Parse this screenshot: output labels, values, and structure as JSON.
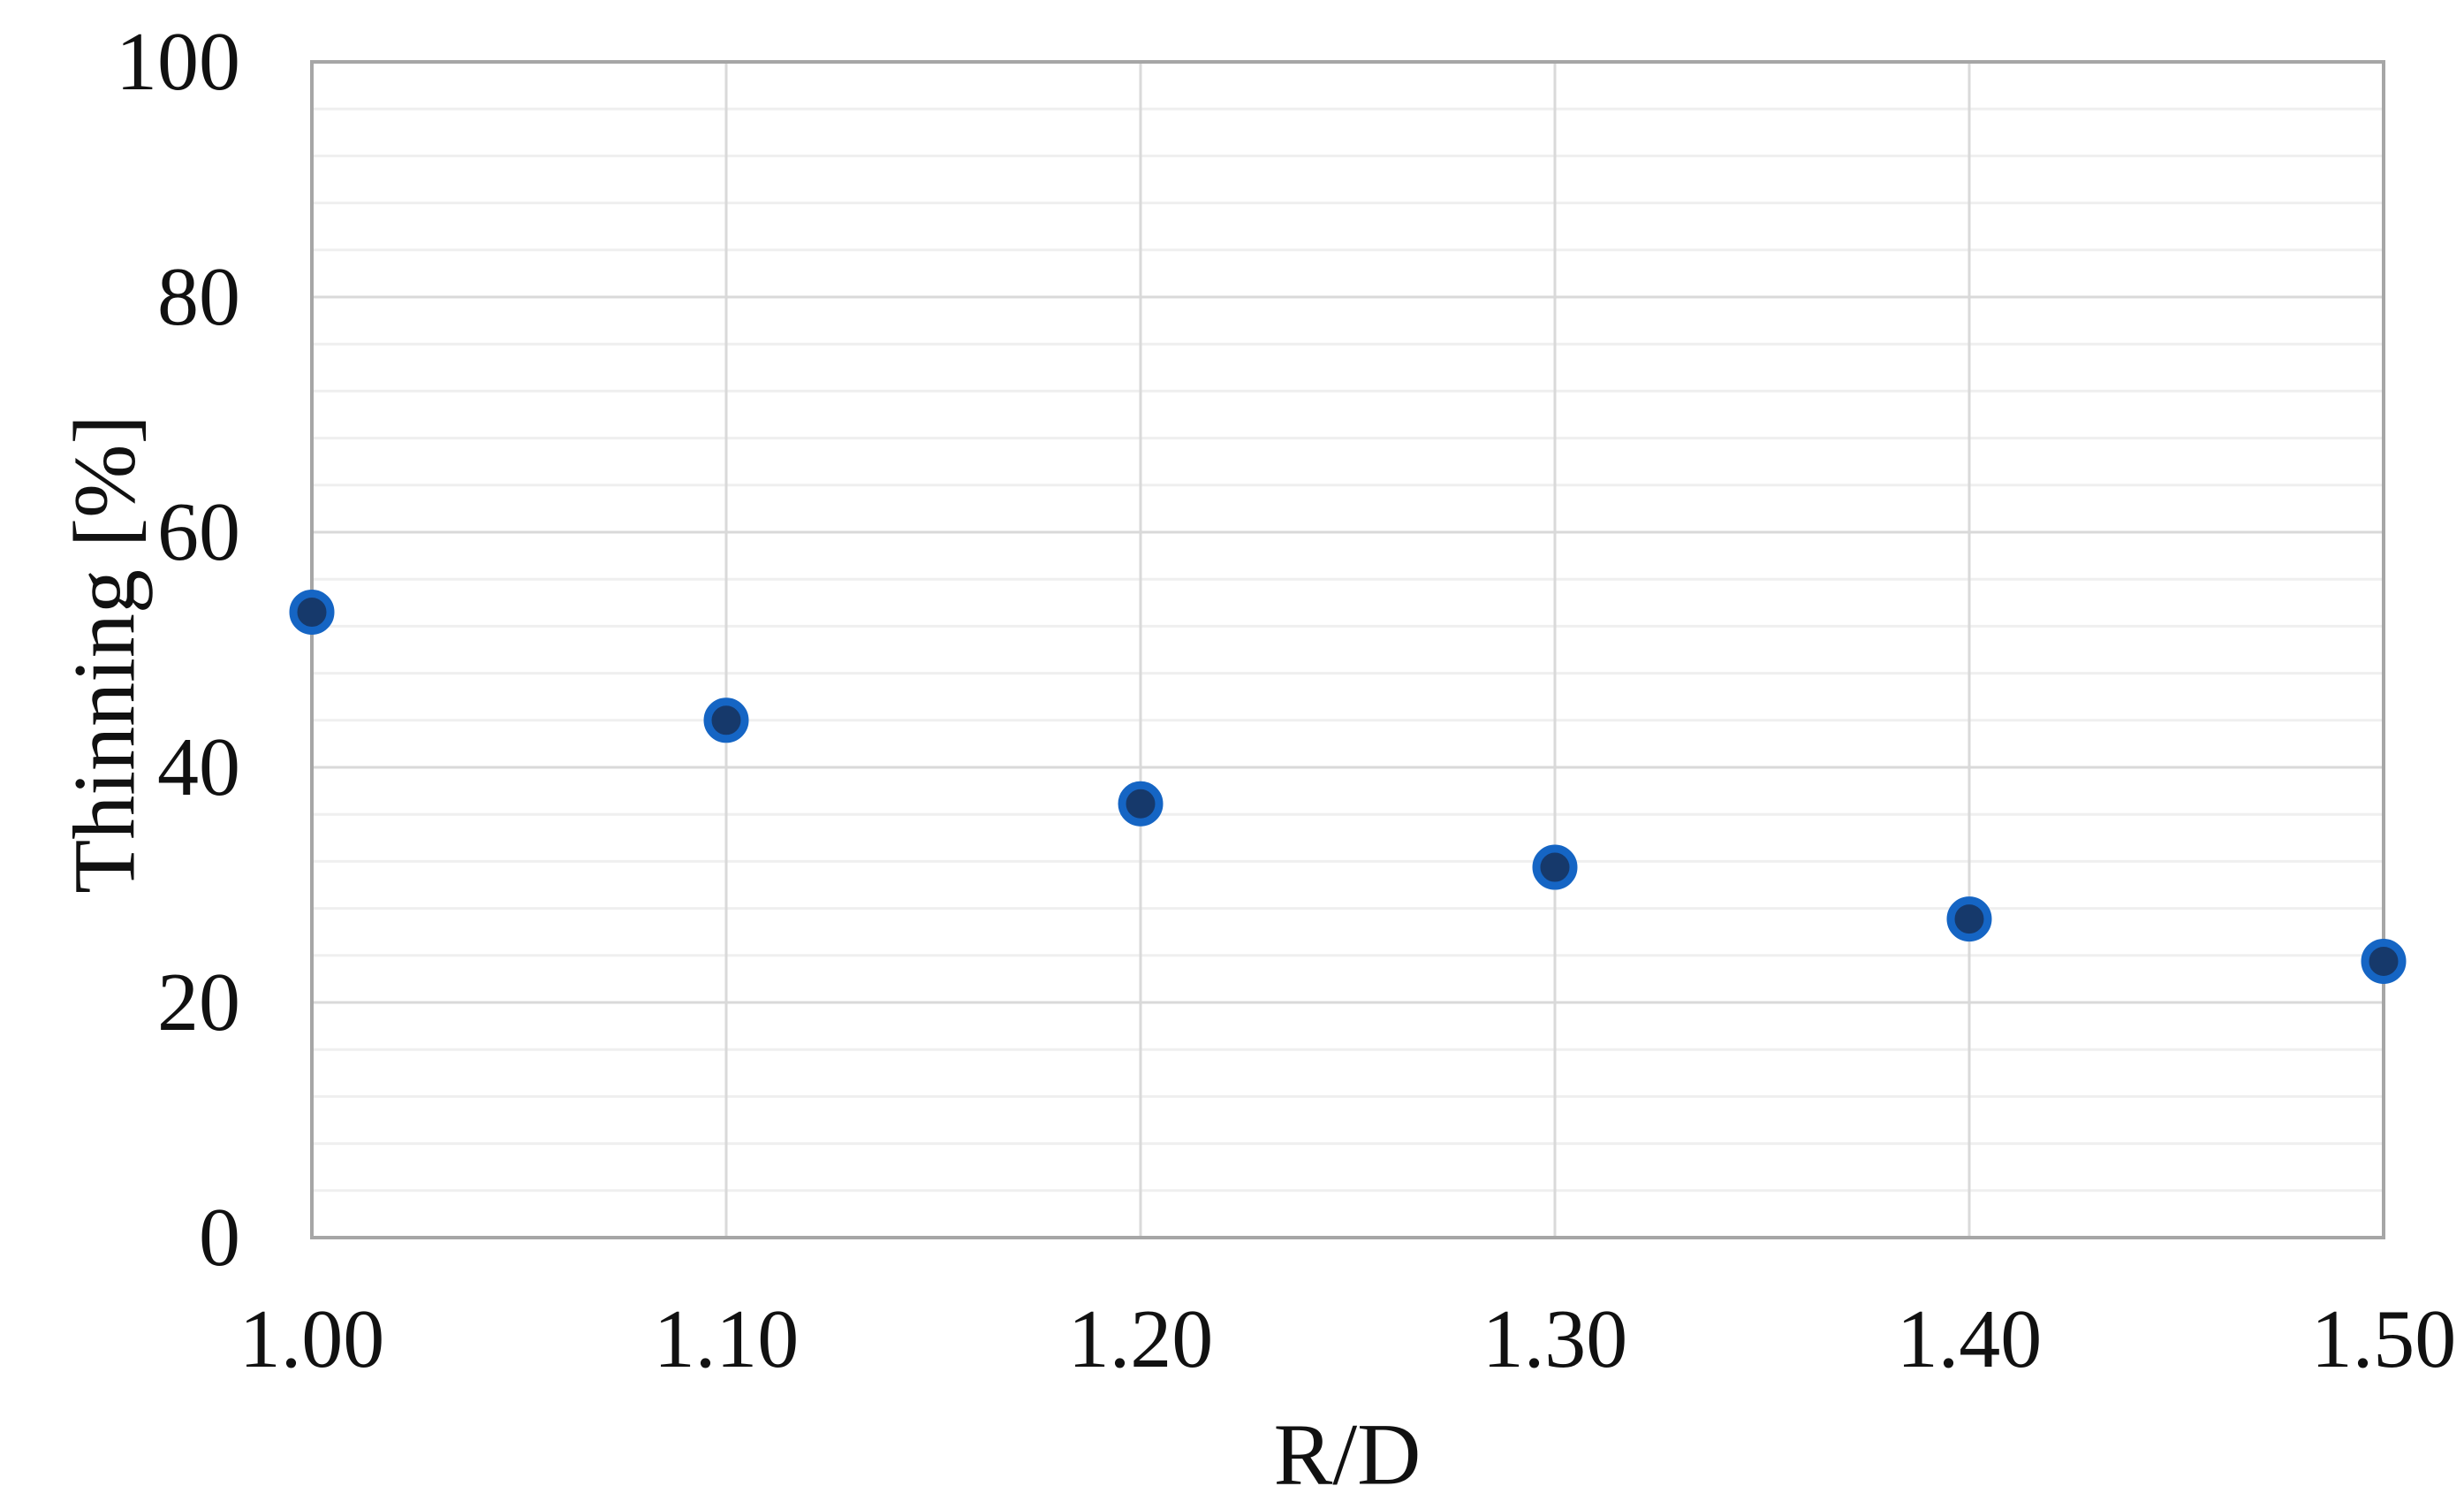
{
  "chart_data": {
    "type": "scatter",
    "title": "",
    "xlabel": "R/D",
    "ylabel": "Thinning [%]",
    "x": [
      1.0,
      1.1,
      1.2,
      1.3,
      1.4,
      1.5
    ],
    "values": [
      53.2,
      44.0,
      36.9,
      31.5,
      27.1,
      23.5
    ],
    "xlim": [
      1.0,
      1.5
    ],
    "ylim": [
      0,
      100
    ],
    "x_tick_labels": [
      "1.00",
      "1.10",
      "1.20",
      "1.30",
      "1.40",
      "1.50"
    ],
    "y_tick_labels": [
      "0",
      "20",
      "40",
      "60",
      "80",
      "100"
    ],
    "x_major_unit": 0.1,
    "y_major_unit": 20,
    "y_minor_unit": 4,
    "grid": {
      "horizontal_major": true,
      "horizontal_minor": true,
      "vertical_major": true,
      "vertical_minor": false
    },
    "legend_position": "none",
    "marker_shape": "circle",
    "colors": {
      "marker_fill": "#16396B",
      "marker_stroke": "#1565C4",
      "grid_major": "#D9D9D9",
      "grid_minor": "#EFEFEF",
      "axis_frame": "#A6A6A6",
      "text": "#111111",
      "background": "#FFFFFF"
    }
  }
}
